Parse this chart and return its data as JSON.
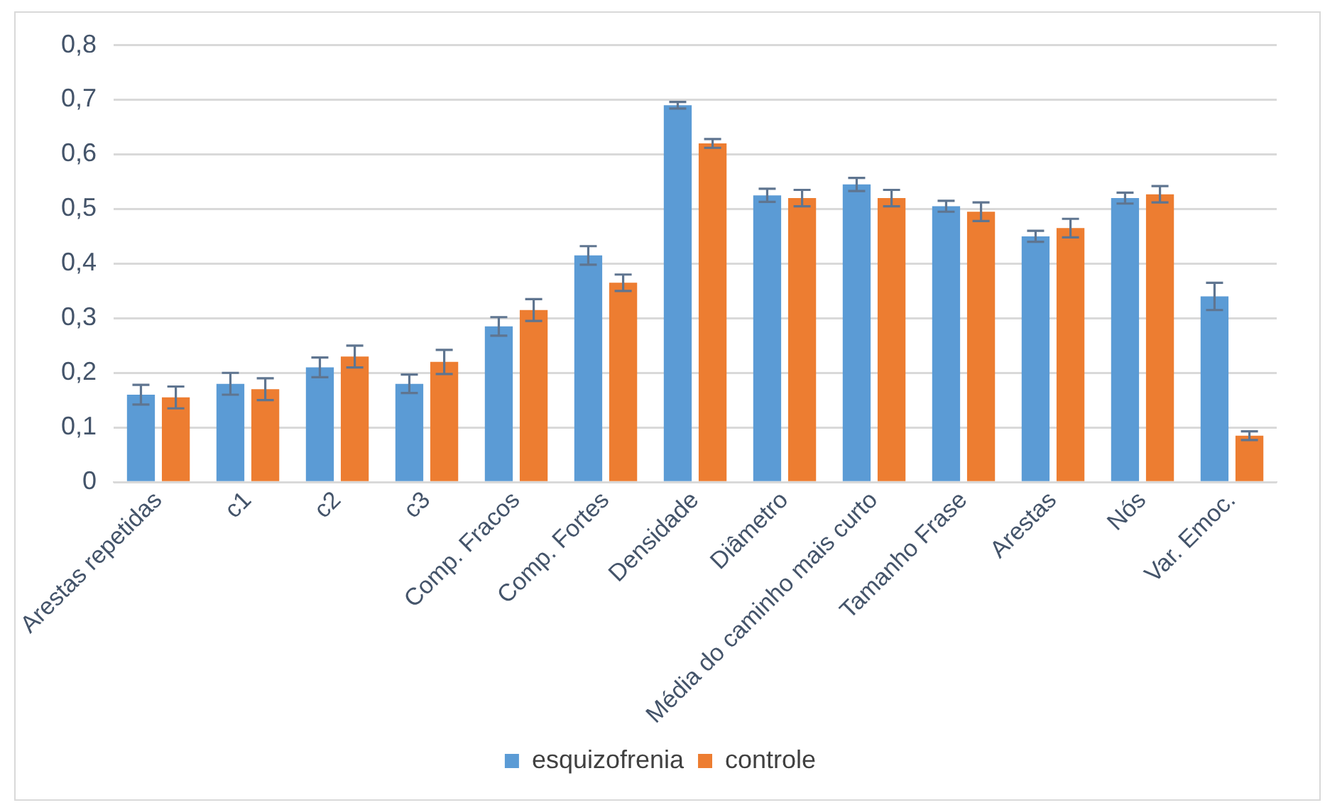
{
  "chart_data": {
    "type": "bar",
    "categories": [
      "Arestas repetidas",
      "c1",
      "c2",
      "c3",
      "Comp. Fracos",
      "Comp. Fortes",
      "Densidade",
      "Diâmetro",
      "Média do caminho mais curto",
      "Tamanho Frase",
      "Arestas",
      "Nós",
      "Var. Emoc."
    ],
    "series": [
      {
        "name": "esquizofrenia",
        "color": "#5b9bd5",
        "values": [
          0.16,
          0.18,
          0.21,
          0.18,
          0.285,
          0.415,
          0.69,
          0.525,
          0.545,
          0.505,
          0.45,
          0.52,
          0.34
        ],
        "errors": [
          0.018,
          0.02,
          0.018,
          0.017,
          0.017,
          0.017,
          0.006,
          0.012,
          0.012,
          0.01,
          0.01,
          0.01,
          0.025
        ]
      },
      {
        "name": "controle",
        "color": "#ed7d31",
        "values": [
          0.155,
          0.17,
          0.23,
          0.22,
          0.315,
          0.365,
          0.62,
          0.52,
          0.52,
          0.495,
          0.465,
          0.527,
          0.085
        ],
        "errors": [
          0.02,
          0.02,
          0.02,
          0.022,
          0.02,
          0.015,
          0.008,
          0.015,
          0.015,
          0.017,
          0.017,
          0.015,
          0.008
        ]
      }
    ],
    "ylim": [
      0,
      0.8
    ],
    "yticks": [
      {
        "value": 0,
        "label": "0"
      },
      {
        "value": 0.1,
        "label": "0,1"
      },
      {
        "value": 0.2,
        "label": "0,2"
      },
      {
        "value": 0.3,
        "label": "0,3"
      },
      {
        "value": 0.4,
        "label": "0,4"
      },
      {
        "value": 0.5,
        "label": "0,5"
      },
      {
        "value": 0.6,
        "label": "0,6"
      },
      {
        "value": 0.7,
        "label": "0,7"
      },
      {
        "value": 0.8,
        "label": "0,8"
      }
    ],
    "grid": "y",
    "legend": "bottom"
  }
}
